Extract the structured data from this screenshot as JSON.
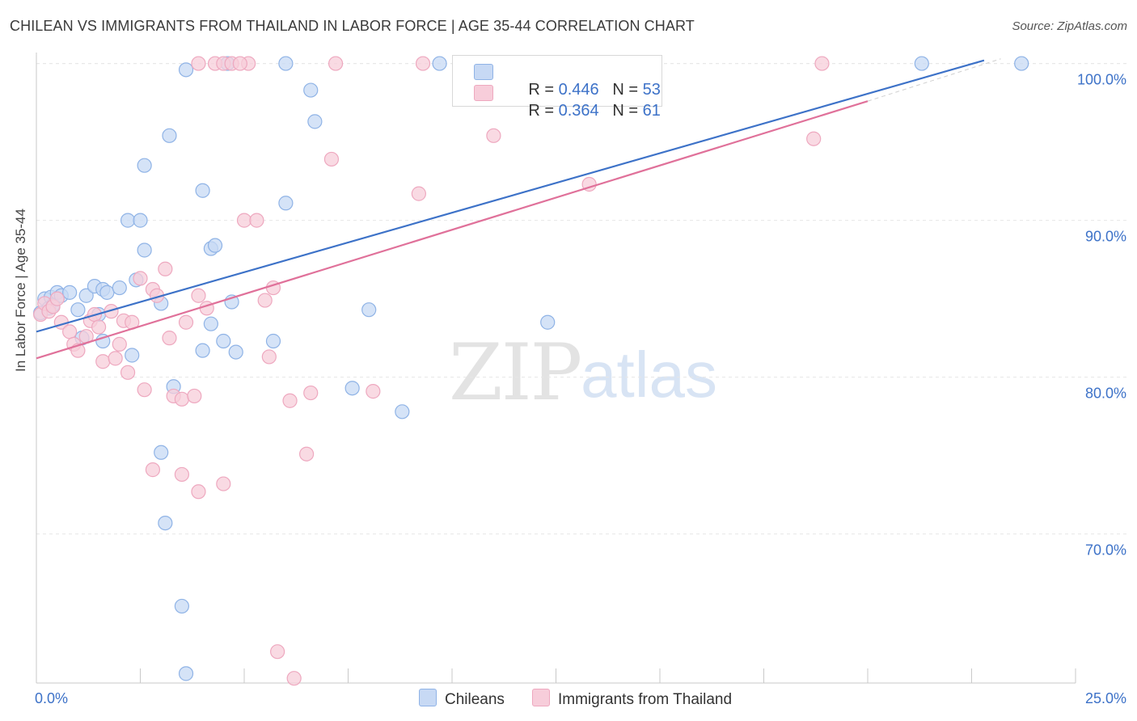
{
  "title": "CHILEAN VS IMMIGRANTS FROM THAILAND IN LABOR FORCE | AGE 35-44 CORRELATION CHART",
  "source": "Source: ZipAtlas.com",
  "watermark": {
    "zip": "ZIP",
    "atlas": "atlas"
  },
  "legend_top": {
    "row1": {
      "r_label": "R = ",
      "r_value": "0.446",
      "n_label": "N = ",
      "n_value": "53"
    },
    "row2": {
      "r_label": "R = ",
      "r_value": "0.364",
      "n_label": "N = ",
      "n_value": "61"
    }
  },
  "colors": {
    "blue_fill": "#c7d9f4",
    "blue_stroke": "#8fb3e6",
    "blue_line": "#3d72c8",
    "pink_fill": "#f7cdda",
    "pink_stroke": "#eea8bf",
    "pink_line": "#e0719a",
    "tick_text": "#3d72c8"
  },
  "chart_data": {
    "type": "scatter",
    "xlabel": "",
    "ylabel": "In Labor Force | Age 35-44",
    "xlim": [
      0,
      25
    ],
    "ylim": [
      60.5,
      100.7
    ],
    "x_tick_labels": [
      "0.0%",
      "25.0%"
    ],
    "y_ticks": [
      70,
      80,
      90,
      100
    ],
    "y_tick_labels": [
      "70.0%",
      "80.0%",
      "90.0%",
      "100.0%"
    ],
    "grid": true,
    "legend": "bottom-center",
    "series": [
      {
        "name": "Chileans",
        "trend": {
          "x": [
            0,
            22.8
          ],
          "y": [
            82.9,
            100.2
          ]
        },
        "points": [
          [
            0.1,
            84.1
          ],
          [
            0.2,
            85.0
          ],
          [
            0.3,
            84.4
          ],
          [
            0.35,
            85.1
          ],
          [
            0.4,
            84.6
          ],
          [
            0.5,
            85.4
          ],
          [
            0.6,
            85.2
          ],
          [
            0.8,
            85.4
          ],
          [
            1.0,
            84.3
          ],
          [
            1.2,
            85.2
          ],
          [
            1.4,
            85.8
          ],
          [
            1.6,
            85.6
          ],
          [
            1.7,
            85.4
          ],
          [
            2.0,
            85.7
          ],
          [
            1.1,
            82.5
          ],
          [
            1.6,
            82.3
          ],
          [
            1.5,
            84.0
          ],
          [
            2.3,
            81.4
          ],
          [
            2.4,
            86.2
          ],
          [
            3.0,
            84.7
          ],
          [
            2.2,
            90.0
          ],
          [
            2.5,
            90.0
          ],
          [
            2.6,
            88.1
          ],
          [
            2.6,
            93.5
          ],
          [
            3.2,
            95.4
          ],
          [
            3.6,
            99.6
          ],
          [
            4.0,
            91.9
          ],
          [
            4.2,
            88.2
          ],
          [
            4.3,
            88.4
          ],
          [
            4.6,
            100.0
          ],
          [
            4.7,
            84.8
          ],
          [
            4.2,
            83.4
          ],
          [
            4.0,
            81.7
          ],
          [
            4.5,
            82.3
          ],
          [
            4.8,
            81.6
          ],
          [
            5.7,
            82.3
          ],
          [
            6.0,
            91.1
          ],
          [
            6.6,
            98.3
          ],
          [
            6.7,
            96.3
          ],
          [
            7.6,
            79.3
          ],
          [
            8.0,
            84.3
          ],
          [
            8.8,
            77.8
          ],
          [
            9.7,
            100.0
          ],
          [
            12.3,
            83.5
          ],
          [
            14.0,
            100.0
          ],
          [
            21.3,
            100.0
          ],
          [
            23.7,
            100.0
          ],
          [
            3.3,
            79.4
          ],
          [
            3.0,
            75.2
          ],
          [
            3.1,
            70.7
          ],
          [
            3.5,
            65.4
          ],
          [
            3.6,
            61.1
          ],
          [
            6.0,
            100.0
          ]
        ]
      },
      {
        "name": "Immigrants from Thailand",
        "trend": {
          "x": [
            0,
            20.0
          ],
          "y": [
            81.2,
            97.6
          ]
        },
        "points": [
          [
            0.1,
            84.0
          ],
          [
            0.2,
            84.7
          ],
          [
            0.3,
            84.2
          ],
          [
            0.4,
            84.5
          ],
          [
            0.5,
            85.0
          ],
          [
            0.6,
            83.5
          ],
          [
            0.8,
            82.9
          ],
          [
            0.9,
            82.1
          ],
          [
            1.0,
            81.7
          ],
          [
            1.2,
            82.6
          ],
          [
            1.3,
            83.6
          ],
          [
            1.4,
            84.0
          ],
          [
            1.5,
            83.2
          ],
          [
            1.6,
            81.0
          ],
          [
            1.8,
            84.2
          ],
          [
            1.9,
            81.2
          ],
          [
            2.0,
            82.1
          ],
          [
            2.1,
            83.6
          ],
          [
            2.2,
            80.3
          ],
          [
            2.3,
            83.5
          ],
          [
            2.5,
            86.3
          ],
          [
            2.6,
            79.2
          ],
          [
            2.8,
            85.6
          ],
          [
            2.9,
            85.2
          ],
          [
            3.1,
            86.9
          ],
          [
            3.2,
            82.5
          ],
          [
            3.3,
            78.8
          ],
          [
            3.5,
            78.6
          ],
          [
            3.6,
            83.5
          ],
          [
            3.8,
            78.8
          ],
          [
            3.9,
            85.2
          ],
          [
            4.1,
            84.4
          ],
          [
            4.3,
            100.0
          ],
          [
            4.5,
            100.0
          ],
          [
            4.7,
            100.0
          ],
          [
            5.1,
            100.0
          ],
          [
            5.0,
            90.0
          ],
          [
            5.3,
            90.0
          ],
          [
            5.5,
            84.9
          ],
          [
            5.7,
            85.7
          ],
          [
            5.6,
            81.3
          ],
          [
            6.1,
            78.5
          ],
          [
            6.6,
            79.0
          ],
          [
            6.5,
            75.1
          ],
          [
            7.1,
            93.9
          ],
          [
            8.1,
            79.1
          ],
          [
            9.2,
            91.7
          ],
          [
            9.3,
            100.0
          ],
          [
            11.0,
            95.4
          ],
          [
            13.3,
            92.3
          ],
          [
            18.7,
            95.2
          ],
          [
            18.9,
            100.0
          ],
          [
            7.2,
            100.0
          ],
          [
            2.8,
            74.1
          ],
          [
            3.5,
            73.8
          ],
          [
            4.5,
            73.2
          ],
          [
            3.9,
            72.7
          ],
          [
            5.8,
            62.5
          ],
          [
            6.2,
            60.8
          ],
          [
            3.9,
            100.0
          ],
          [
            4.9,
            100.0
          ]
        ]
      }
    ]
  },
  "bottom_legend": {
    "item1": "Chileans",
    "item2": "Immigrants from Thailand"
  }
}
